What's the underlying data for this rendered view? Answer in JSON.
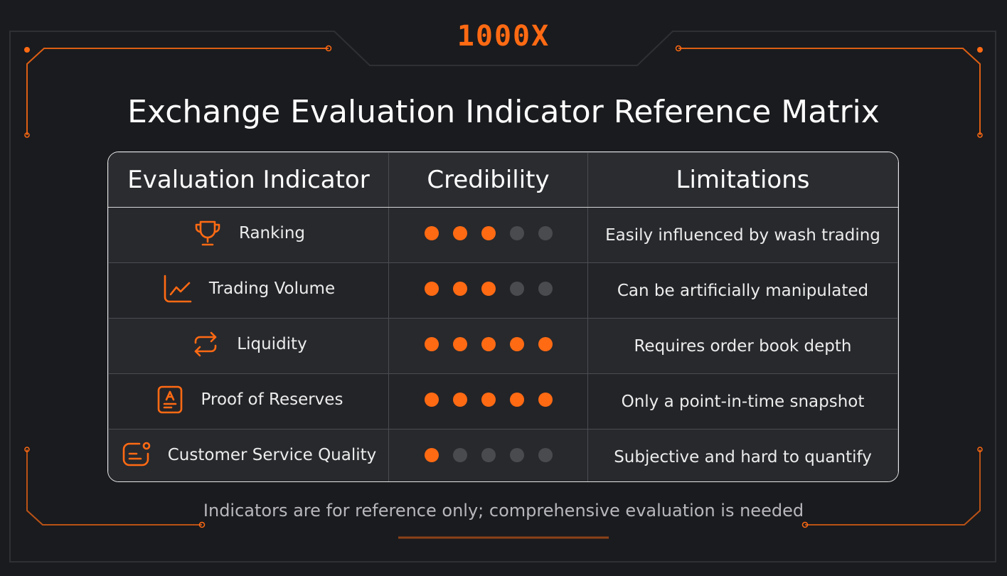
{
  "brand": {
    "logo_text": "1000X",
    "accent": "#ff6a13"
  },
  "title": "Exchange Evaluation Indicator Reference Matrix",
  "table": {
    "headers": [
      "Evaluation Indicator",
      "Credibility",
      "Limitations"
    ],
    "rows": [
      {
        "icon": "trophy-icon",
        "indicator": "Ranking",
        "credibility": 3,
        "max": 5,
        "limitation": "Easily influenced by wash trading"
      },
      {
        "icon": "line-chart-icon",
        "indicator": "Trading Volume",
        "credibility": 3,
        "max": 5,
        "limitation": "Can be artificially manipulated"
      },
      {
        "icon": "swap-arrows-icon",
        "indicator": "Liquidity",
        "credibility": 5,
        "max": 5,
        "limitation": "Requires order book depth"
      },
      {
        "icon": "reserve-document-icon",
        "indicator": "Proof of Reserves",
        "credibility": 5,
        "max": 5,
        "limitation": "Only a point-in-time snapshot"
      },
      {
        "icon": "chat-message-icon",
        "indicator": "Customer Service Quality",
        "credibility": 1,
        "max": 5,
        "limitation": "Subjective and hard to quantify"
      }
    ]
  },
  "footnote": "Indicators are for reference only; comprehensive evaluation is needed"
}
